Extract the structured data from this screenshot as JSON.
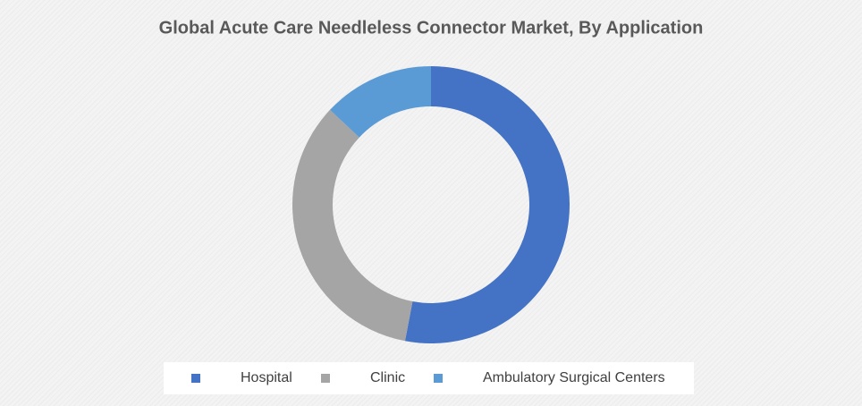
{
  "chart_data": {
    "type": "donut",
    "title": "Global Acute Care Needleless Connector Market, By Application",
    "categories": [
      "Hospital",
      "Clinic",
      "Ambulatory Surgical Centers"
    ],
    "values": [
      53,
      34,
      13
    ],
    "colors": [
      "#4472c4",
      "#a5a5a5",
      "#5b9bd5"
    ],
    "legend": "bottom"
  }
}
